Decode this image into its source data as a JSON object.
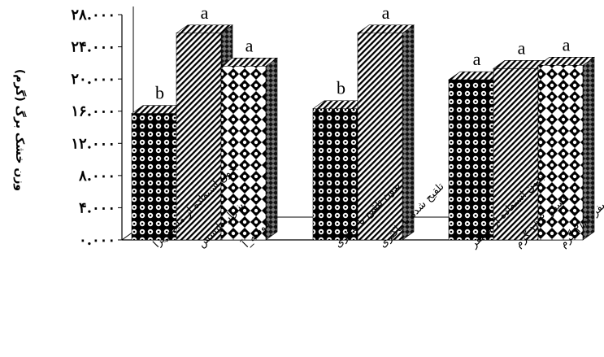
{
  "chart_data": {
    "type": "bar",
    "ylabel": "وزن خشک برگ (گرم)",
    "ylim": [
      0,
      28
    ],
    "yticks": [
      0,
      4,
      8,
      12,
      16,
      20,
      24,
      28
    ],
    "ytick_labels": [
      "۰.۰۰۰",
      "۴.۰۰۰",
      "۸.۰۰۰",
      "۱۲.۰۰۰",
      "۱۶.۰۰۰",
      "۲۰.۰۰۰",
      "۲۴.۰۰۰",
      "۲۸.۰۰۰"
    ],
    "groups": [
      {
        "bars": [
          {
            "category": "بدون استفاده از مایکوریزا",
            "value": 15.7,
            "letter": "b",
            "pattern": "circles"
          },
          {
            "category": "اینترارادایسس",
            "value": 25.7,
            "letter": "a",
            "pattern": "stripes"
          },
          {
            "category": "موسه_آ",
            "value": 21.6,
            "letter": "a",
            "pattern": "diamonds"
          }
        ]
      },
      {
        "bars": [
          {
            "category": "بدون تلقیح با باکتری",
            "value": 16.3,
            "letter": "b",
            "pattern": "circles"
          },
          {
            "category": "تلقیح شده با باکتری",
            "value": 25.7,
            "letter": "a",
            "pattern": "stripes"
          }
        ]
      },
      {
        "bars": [
          {
            "category": "بدون استفاده از فسفر",
            "value": 19.9,
            "letter": "a",
            "pattern": "circles"
          },
          {
            "category": "فسفر ۱/۳۲ گرم",
            "value": 21.3,
            "letter": "a",
            "pattern": "stripes"
          },
          {
            "category": "فسفر ۲/۶۴ گرم",
            "value": 21.7,
            "letter": "a",
            "pattern": "diamonds"
          }
        ]
      }
    ]
  }
}
